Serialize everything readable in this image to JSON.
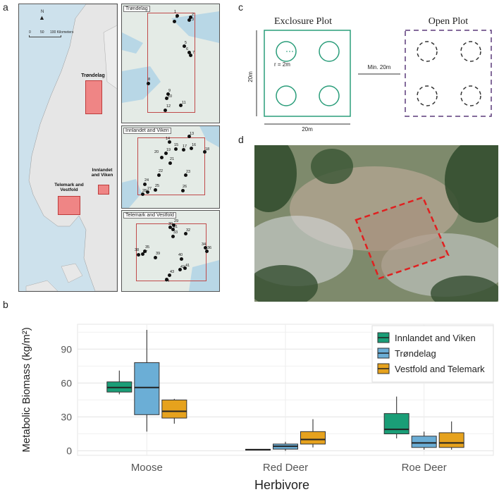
{
  "panels": {
    "a": "a",
    "b": "b",
    "c": "c",
    "d": "d"
  },
  "map": {
    "scale_labels": [
      "0",
      "50",
      "100 Kilometers"
    ],
    "north": "N",
    "regions": [
      {
        "id": "trondelag",
        "label": "Trøndelag"
      },
      {
        "id": "innlandet",
        "label": "Innlandet and Viken"
      },
      {
        "id": "telemark",
        "label": "Telemark and Vestfold"
      }
    ],
    "insets": [
      {
        "title": "Trøndelag",
        "sites": [
          "1",
          "2",
          "3",
          "4",
          "5",
          "6",
          "7",
          "8",
          "9",
          "10",
          "11",
          "12"
        ]
      },
      {
        "title": "Innlandet and Viken",
        "sites": [
          "13",
          "14",
          "15",
          "16",
          "17",
          "18",
          "19",
          "20",
          "21",
          "22",
          "23",
          "24",
          "25",
          "26",
          "27",
          "28"
        ]
      },
      {
        "title": "Telemark and Vestfold",
        "sites": [
          "29",
          "30",
          "31",
          "32",
          "33",
          "34",
          "35",
          "36",
          "37",
          "38",
          "39",
          "40",
          "41",
          "42",
          "43",
          "44"
        ]
      }
    ]
  },
  "plot_diagram": {
    "exclosure_title": "Exclosure Plot",
    "open_title": "Open Plot",
    "radius_label": "r = 2m",
    "side_label": "20m",
    "bottom_label": "20m",
    "gap_label": "Min. 20m",
    "exclosure_color": "#2a9d7a",
    "open_color": "#5b3a7a"
  },
  "photo": {
    "outline_color": "#e02020"
  },
  "chart_data": {
    "type": "box",
    "xlabel": "Herbivore",
    "ylabel": "Metabolic Biomass  (kg/m²)",
    "categories": [
      "Moose",
      "Red Deer",
      "Roe Deer"
    ],
    "ylim": [
      -4,
      112
    ],
    "yticks": [
      0,
      30,
      60,
      90
    ],
    "grid": true,
    "legend_position": "top-right",
    "series": [
      {
        "name": "Innlandet and Viken",
        "color": "#1a9e77",
        "boxes": [
          {
            "min": 50,
            "q1": 52,
            "median": 56,
            "q3": 61,
            "max": 71
          },
          {
            "min": 0.5,
            "q1": 0.6,
            "median": 1,
            "q3": 1.4,
            "max": 1.6
          },
          {
            "min": 11,
            "q1": 15,
            "median": 19,
            "q3": 33,
            "max": 48
          }
        ]
      },
      {
        "name": "Trøndelag",
        "color": "#6baed6",
        "boxes": [
          {
            "min": 17,
            "q1": 32,
            "median": 56,
            "q3": 78,
            "max": 107
          },
          {
            "min": 0,
            "q1": 1.5,
            "median": 4,
            "q3": 6,
            "max": 8
          },
          {
            "min": 1,
            "q1": 3,
            "median": 7,
            "q3": 13,
            "max": 17
          }
        ]
      },
      {
        "name": "Vestfold and Telemark",
        "color": "#e6a21d",
        "boxes": [
          {
            "min": 24,
            "q1": 29,
            "median": 35,
            "q3": 45,
            "max": 46
          },
          {
            "min": 3,
            "q1": 6,
            "median": 10,
            "q3": 17,
            "max": 28
          },
          {
            "min": 1,
            "q1": 3,
            "median": 7,
            "q3": 16,
            "max": 26
          }
        ]
      }
    ]
  }
}
